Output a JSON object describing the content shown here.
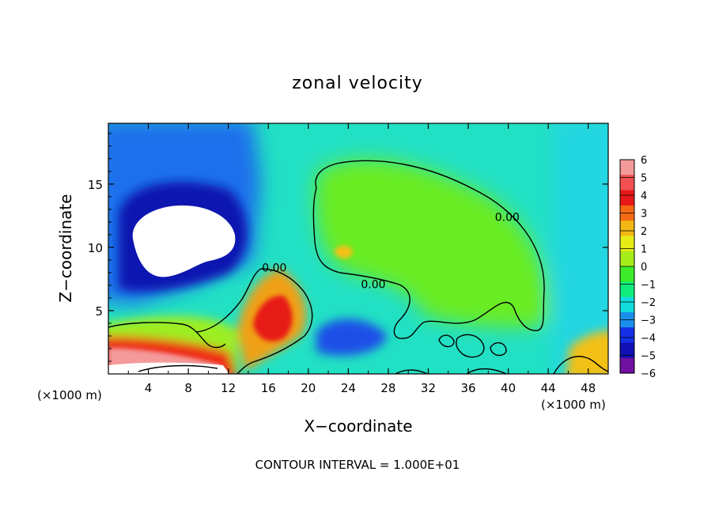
{
  "chart_data": {
    "type": "heatmap",
    "title": "zonal velocity",
    "xlabel": "X−coordinate",
    "ylabel": "Z−coordinate",
    "x_unit_left": "(×1000 m)",
    "x_unit_right": "(×1000 m)",
    "footer": "CONTOUR INTERVAL = 1.000E+01",
    "xlim": [
      0,
      50
    ],
    "ylim": [
      0,
      19.8
    ],
    "x_ticks": [
      4,
      8,
      12,
      16,
      20,
      24,
      28,
      32,
      36,
      40,
      44,
      48
    ],
    "x_tick_labels": [
      "4",
      "8",
      "12",
      "16",
      "20",
      "24",
      "28",
      "32",
      "36",
      "40",
      "44",
      "48"
    ],
    "y_ticks": [
      5,
      10,
      15
    ],
    "y_tick_labels": [
      "5",
      "10",
      "15"
    ],
    "contour_labels": [
      {
        "text": "0.00",
        "x": 16.6,
        "y": 8.4
      },
      {
        "text": "0.00",
        "x": 26.5,
        "y": 7.1
      },
      {
        "text": "0.00",
        "x": 39.9,
        "y": 12.4
      }
    ],
    "colorbar": {
      "values": [
        6,
        5,
        4,
        3,
        2,
        1,
        0,
        -1,
        -2,
        -3,
        -4,
        -5,
        -6
      ],
      "labels": [
        "6",
        "5",
        "4",
        "3",
        "2",
        "1",
        "0",
        "−1",
        "−2",
        "−3",
        "−4",
        "−5",
        "−6"
      ],
      "colors": [
        "#f49a9a",
        "#f25050",
        "#e81818",
        "#f46a14",
        "#f4b814",
        "#e6ec14",
        "#a6ec1a",
        "#3cec28",
        "#10ec7c",
        "#10dcdc",
        "#1a90ec",
        "#1430e6",
        "#1010b4",
        "#7010a0"
      ]
    }
  }
}
